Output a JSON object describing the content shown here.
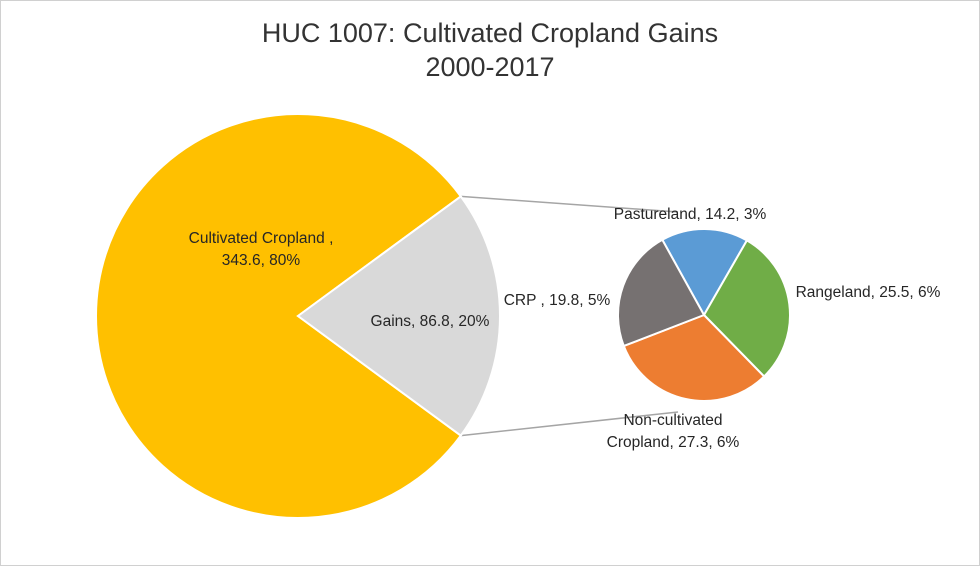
{
  "chart_data": {
    "type": "pie",
    "title": "HUC 1007: Cultivated Cropland Gains",
    "subtitle": "2000-2017",
    "main_pie": {
      "slices": [
        {
          "key": "cultivated",
          "label": "Cultivated Cropland , 343.6, 80%",
          "label_lines": [
            "Cultivated Cropland ,",
            "343.6, 80%"
          ],
          "value": 343.6,
          "percent": 80,
          "color": "#FFC000"
        },
        {
          "key": "gains",
          "label": "Gains, 86.8, 20%",
          "label_lines": [
            "Gains, 86.8, 20%"
          ],
          "value": 86.8,
          "percent": 20,
          "color": "#D9D9D9"
        }
      ]
    },
    "secondary_pie": {
      "slices": [
        {
          "key": "pastureland",
          "label": "Pastureland, 14.2, 3%",
          "label_lines": [
            "Pastureland, 14.2, 3%"
          ],
          "value": 14.2,
          "percent": 3,
          "color": "#5B9BD5"
        },
        {
          "key": "rangeland",
          "label": "Rangeland, 25.5, 6%",
          "label_lines": [
            "Rangeland, 25.5, 6%"
          ],
          "value": 25.5,
          "percent": 6,
          "color": "#70AD47"
        },
        {
          "key": "non-cultivated",
          "label": "Non-cultivated Cropland, 27.3, 6%",
          "label_lines": [
            "Non-cultivated",
            "Cropland, 27.3, 6%"
          ],
          "value": 27.3,
          "percent": 6,
          "color": "#ED7D31"
        },
        {
          "key": "crp",
          "label": "CRP , 19.8, 5%",
          "label_lines": [
            "CRP , 19.8, 5%"
          ],
          "value": 19.8,
          "percent": 5,
          "color": "#767171"
        }
      ]
    },
    "connector_color": "#A5A5A5"
  }
}
